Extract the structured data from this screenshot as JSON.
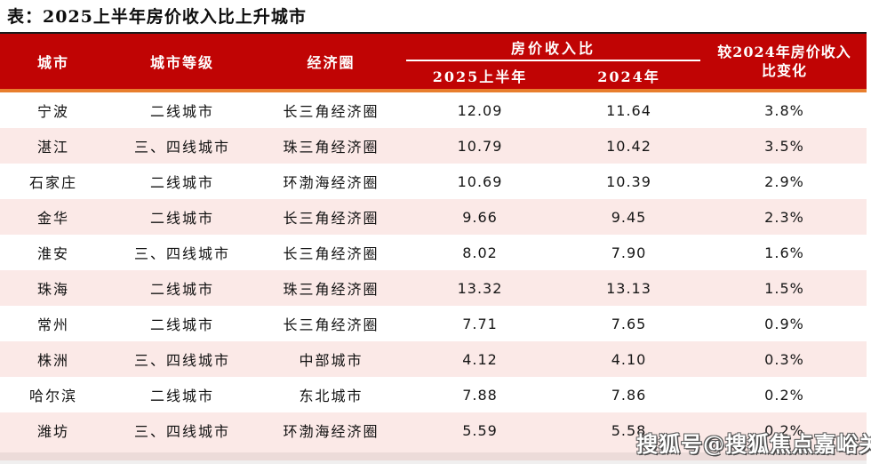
{
  "title": "表：2025上半年房价收入比上升城市",
  "table": {
    "headers": {
      "city": "城市",
      "tier": "城市等级",
      "zone": "经济圈",
      "ratio_group": "房价收入比",
      "sub_2025": "2025上半年",
      "sub_2024": "2024年",
      "change_line1": "较2024年房价收入",
      "change_line2": "比变化"
    },
    "rows": [
      {
        "city": "宁波",
        "tier": "二线城市",
        "zone": "长三角经济圈",
        "h1_2025": "12.09",
        "y2024": "11.64",
        "change": "3.8%"
      },
      {
        "city": "湛江",
        "tier": "三、四线城市",
        "zone": "珠三角经济圈",
        "h1_2025": "10.79",
        "y2024": "10.42",
        "change": "3.5%"
      },
      {
        "city": "石家庄",
        "tier": "二线城市",
        "zone": "环渤海经济圈",
        "h1_2025": "10.69",
        "y2024": "10.39",
        "change": "2.9%"
      },
      {
        "city": "金华",
        "tier": "二线城市",
        "zone": "长三角经济圈",
        "h1_2025": "9.66",
        "y2024": "9.45",
        "change": "2.3%"
      },
      {
        "city": "淮安",
        "tier": "三、四线城市",
        "zone": "长三角经济圈",
        "h1_2025": "8.02",
        "y2024": "7.90",
        "change": "1.6%"
      },
      {
        "city": "珠海",
        "tier": "二线城市",
        "zone": "珠三角经济圈",
        "h1_2025": "13.32",
        "y2024": "13.13",
        "change": "1.5%"
      },
      {
        "city": "常州",
        "tier": "二线城市",
        "zone": "长三角经济圈",
        "h1_2025": "7.71",
        "y2024": "7.65",
        "change": "0.9%"
      },
      {
        "city": "株洲",
        "tier": "三、四线城市",
        "zone": "中部城市",
        "h1_2025": "4.12",
        "y2024": "4.10",
        "change": "0.3%"
      },
      {
        "city": "哈尔滨",
        "tier": "二线城市",
        "zone": "东北城市",
        "h1_2025": "7.88",
        "y2024": "7.86",
        "change": "0.2%"
      },
      {
        "city": "潍坊",
        "tier": "三、四线城市",
        "zone": "环渤海经济圈",
        "h1_2025": "5.59",
        "y2024": "5.58",
        "change": "0.2%"
      }
    ]
  },
  "watermark": "搜狐号@搜狐焦点嘉峪关站",
  "colors": {
    "header_bg": "#c00404",
    "accent_orange": "#e87e2d",
    "row_alt": "#fbe9e7",
    "header_text": "#ffffff",
    "body_text": "#111111",
    "top_line": "#1a1a1a"
  }
}
